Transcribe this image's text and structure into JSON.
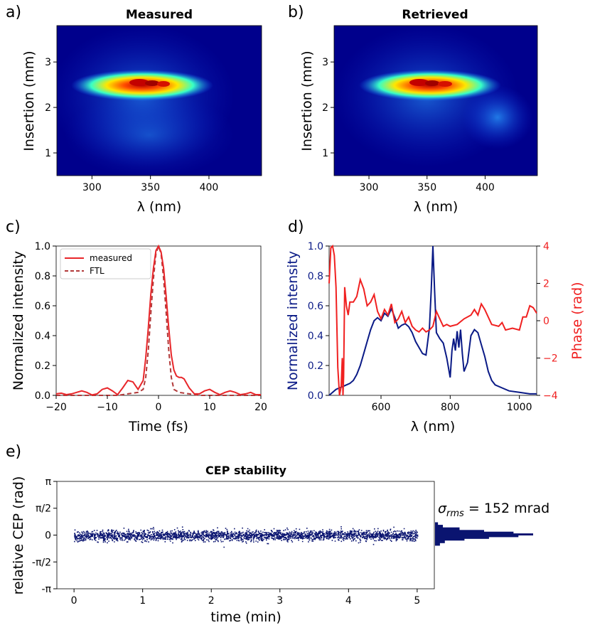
{
  "panel_labels": [
    "a)",
    "b)",
    "c)",
    "d)",
    "e)"
  ],
  "chart_data": [
    {
      "id": "a",
      "type": "heatmap",
      "title": "Measured",
      "xlabel": "λ (nm)",
      "ylabel": "Insertion (mm)",
      "xlim": [
        270,
        445
      ],
      "ylim": [
        0.5,
        3.8
      ],
      "xticks": [
        300,
        350,
        400
      ],
      "yticks": [
        1,
        2,
        3
      ],
      "colormap": "jet",
      "peak": {
        "lambda_center": 345,
        "insertion_center": 2.5,
        "lambda_range": [
          325,
          370
        ]
      }
    },
    {
      "id": "b",
      "type": "heatmap",
      "title": "Retrieved",
      "xlabel": "λ (nm)",
      "ylabel": "Insertion (mm)",
      "xlim": [
        270,
        445
      ],
      "ylim": [
        0.5,
        3.8
      ],
      "xticks": [
        300,
        350,
        400
      ],
      "yticks": [
        1,
        2,
        3
      ],
      "colormap": "jet",
      "peak": {
        "lambda_center": 350,
        "insertion_center": 2.5,
        "lambda_range": [
          325,
          380
        ]
      }
    },
    {
      "id": "c",
      "type": "line",
      "title": "",
      "xlabel": "Time (fs)",
      "ylabel": "Normalized intensity",
      "xlim": [
        -20,
        20
      ],
      "ylim": [
        0,
        1.0
      ],
      "xticks": [
        -20,
        -10,
        0,
        10,
        20
      ],
      "yticks": [
        0.0,
        0.2,
        0.4,
        0.6,
        0.8,
        1.0
      ],
      "yticklabels": [
        "0.0",
        "0.2",
        "0.4",
        "0.6",
        "0.8",
        "1.0"
      ],
      "legend": "top-left",
      "series": [
        {
          "name": "measured",
          "color": "#e8262a",
          "style": "solid",
          "x": [
            -20,
            -19,
            -18,
            -17,
            -16,
            -15,
            -14,
            -13,
            -12,
            -11,
            -10,
            -9,
            -8,
            -7,
            -6,
            -5,
            -4,
            -3,
            -2.5,
            -2,
            -1.5,
            -1,
            -0.5,
            0,
            0.5,
            1,
            1.5,
            2,
            2.5,
            3,
            3.5,
            4,
            4.5,
            5,
            5.5,
            6,
            7,
            8,
            9,
            10,
            11,
            12,
            13,
            14,
            15,
            16,
            17,
            18,
            19,
            20
          ],
          "y": [
            0.01,
            0.015,
            0.005,
            0.01,
            0.02,
            0.03,
            0.02,
            0.003,
            0.01,
            0.04,
            0.05,
            0.03,
            0.005,
            0.05,
            0.1,
            0.09,
            0.04,
            0.1,
            0.25,
            0.45,
            0.68,
            0.85,
            0.97,
            1.0,
            0.96,
            0.85,
            0.66,
            0.45,
            0.27,
            0.17,
            0.13,
            0.12,
            0.12,
            0.11,
            0.08,
            0.05,
            0.01,
            0.01,
            0.03,
            0.04,
            0.02,
            0.005,
            0.02,
            0.03,
            0.02,
            0.005,
            0.01,
            0.02,
            0.005,
            0.005
          ]
        },
        {
          "name": "FTL",
          "color": "#b23a3a",
          "style": "dashed",
          "x": [
            -20,
            -8,
            -6,
            -4,
            -3,
            -2.5,
            -2,
            -1.5,
            -1,
            -0.5,
            0,
            0.5,
            1,
            1.5,
            2,
            2.5,
            3,
            4,
            6,
            8,
            20
          ],
          "y": [
            0.0,
            0.0,
            0.01,
            0.02,
            0.04,
            0.12,
            0.3,
            0.55,
            0.78,
            0.95,
            1.0,
            0.95,
            0.78,
            0.55,
            0.3,
            0.12,
            0.04,
            0.02,
            0.01,
            0.0,
            0.0
          ]
        }
      ]
    },
    {
      "id": "d",
      "type": "line",
      "title": "",
      "xlabel": "λ (nm)",
      "ylabel": "Normalized intensity",
      "ylabel_right": "Phase (rad)",
      "xlim": [
        450,
        1050
      ],
      "ylim": [
        0,
        1.0
      ],
      "ylim_right": [
        -4,
        4
      ],
      "xticks": [
        600,
        800,
        1000
      ],
      "yticks": [
        0.0,
        0.2,
        0.4,
        0.6,
        0.8,
        1.0
      ],
      "yticklabels": [
        "0.0",
        "0.2",
        "0.4",
        "0.6",
        "0.8",
        "1.0"
      ],
      "yticks_right": [
        -4,
        -2,
        0,
        2,
        4
      ],
      "yticklabels_right": [
        "−4",
        "−2",
        "0",
        "2",
        "4"
      ],
      "series": [
        {
          "name": "Normalized intensity",
          "axis": "left",
          "color": "#0a1a86",
          "x": [
            450,
            460,
            470,
            480,
            490,
            500,
            510,
            520,
            530,
            540,
            550,
            560,
            570,
            580,
            590,
            600,
            610,
            620,
            630,
            640,
            650,
            660,
            670,
            680,
            690,
            700,
            710,
            720,
            730,
            740,
            745,
            750,
            755,
            760,
            770,
            780,
            790,
            800,
            805,
            810,
            815,
            820,
            825,
            830,
            835,
            840,
            850,
            860,
            870,
            880,
            890,
            900,
            910,
            920,
            930,
            950,
            970,
            1000,
            1030,
            1050
          ],
          "y": [
            0.0,
            0.02,
            0.04,
            0.05,
            0.06,
            0.07,
            0.08,
            0.1,
            0.14,
            0.2,
            0.28,
            0.36,
            0.44,
            0.5,
            0.52,
            0.5,
            0.55,
            0.53,
            0.58,
            0.52,
            0.45,
            0.47,
            0.48,
            0.46,
            0.42,
            0.36,
            0.32,
            0.28,
            0.27,
            0.45,
            0.7,
            1.0,
            0.7,
            0.42,
            0.38,
            0.35,
            0.25,
            0.12,
            0.3,
            0.38,
            0.3,
            0.43,
            0.32,
            0.44,
            0.28,
            0.16,
            0.22,
            0.4,
            0.44,
            0.42,
            0.34,
            0.26,
            0.16,
            0.1,
            0.07,
            0.05,
            0.03,
            0.02,
            0.01,
            0.01
          ]
        },
        {
          "name": "Phase",
          "axis": "right",
          "color": "#f02020",
          "x": [
            450,
            455,
            460,
            465,
            470,
            475,
            480,
            485,
            488,
            490,
            492,
            495,
            500,
            505,
            510,
            520,
            530,
            540,
            550,
            560,
            570,
            580,
            590,
            600,
            610,
            620,
            630,
            640,
            650,
            660,
            670,
            680,
            690,
            700,
            710,
            720,
            730,
            740,
            750,
            760,
            770,
            780,
            790,
            800,
            820,
            840,
            860,
            870,
            880,
            890,
            900,
            920,
            940,
            950,
            960,
            980,
            1000,
            1010,
            1020,
            1030,
            1040,
            1050
          ],
          "y": [
            2.0,
            3.9,
            4.0,
            3.5,
            1.8,
            -2.5,
            -4.0,
            -3.5,
            -2.0,
            -4.0,
            -3.0,
            1.8,
            0.8,
            0.3,
            1.0,
            1.0,
            1.3,
            2.2,
            1.7,
            0.8,
            1.0,
            1.4,
            0.5,
            0.1,
            0.6,
            0.3,
            0.9,
            -0.1,
            0.1,
            0.5,
            -0.1,
            0.2,
            -0.3,
            -0.5,
            -0.6,
            -0.4,
            -0.6,
            -0.5,
            -0.3,
            0.5,
            0.1,
            -0.3,
            -0.2,
            -0.3,
            -0.2,
            0.1,
            0.3,
            0.6,
            0.3,
            0.9,
            0.6,
            -0.2,
            -0.3,
            -0.1,
            -0.5,
            -0.4,
            -0.5,
            0.2,
            0.2,
            0.8,
            0.7,
            0.4
          ]
        }
      ]
    },
    {
      "id": "e",
      "type": "scatter",
      "title": "CEP stability",
      "xlabel": "time (min)",
      "ylabel": "relative CEP (rad)",
      "xlim": [
        -0.25,
        5.25
      ],
      "ylim": [
        -3.14159,
        3.14159
      ],
      "xticks": [
        0,
        1,
        2,
        3,
        4,
        5
      ],
      "yticks": [
        -3.14159,
        -1.5708,
        0,
        1.5708,
        3.14159
      ],
      "yticklabels": [
        "-π",
        "-π/2",
        "0",
        "π/2",
        "π"
      ],
      "series": [
        {
          "name": "CEP",
          "color": "#0a1470",
          "x_range": [
            0,
            5
          ],
          "mean": 0.0,
          "std": 0.152
        }
      ],
      "histogram": {
        "bins": [
          -0.6,
          -0.45,
          -0.3,
          -0.2,
          -0.1,
          0.0,
          0.1,
          0.2,
          0.3,
          0.45,
          0.6
        ],
        "counts": [
          0.05,
          0.1,
          0.3,
          0.55,
          0.85,
          1.0,
          0.8,
          0.5,
          0.25,
          0.08,
          0.03
        ]
      },
      "annotation": {
        "sigma_symbol": "σ",
        "sigma_sub": "rms",
        "text": " = 152 mrad"
      }
    }
  ]
}
